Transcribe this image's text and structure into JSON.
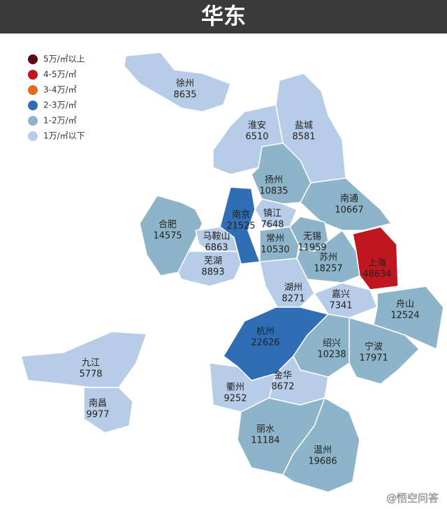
{
  "header": {
    "title": "华东"
  },
  "legend": {
    "items": [
      {
        "label": "5万/㎡以上",
        "color": "#5c0a16"
      },
      {
        "label": "4-5万/㎡",
        "color": "#c0161f"
      },
      {
        "label": "3-4万/㎡",
        "color": "#e46c1f"
      },
      {
        "label": "2-3万/㎡",
        "color": "#2f6db4"
      },
      {
        "label": "1-2万/㎡",
        "color": "#8db4c8"
      },
      {
        "label": "1万/㎡以下",
        "color": "#b6cce7"
      }
    ]
  },
  "regions": [
    {
      "name": "徐州",
      "value": 8635,
      "color": "#b6cce7"
    },
    {
      "name": "淮安",
      "value": 6510,
      "color": "#b6cce7"
    },
    {
      "name": "盐城",
      "value": 8581,
      "color": "#b6cce7"
    },
    {
      "name": "扬州",
      "value": 10835,
      "color": "#8db4c8"
    },
    {
      "name": "南通",
      "value": 10667,
      "color": "#8db4c8"
    },
    {
      "name": "南京",
      "value": 21525,
      "color": "#2f6db4"
    },
    {
      "name": "镇江",
      "value": 7648,
      "color": "#b6cce7"
    },
    {
      "name": "合肥",
      "value": 14575,
      "color": "#8db4c8"
    },
    {
      "name": "马鞍山",
      "value": 6863,
      "color": "#b6cce7"
    },
    {
      "name": "常州",
      "value": 10530,
      "color": "#8db4c8"
    },
    {
      "name": "无锡",
      "value": 11959,
      "color": "#8db4c8"
    },
    {
      "name": "芜湖",
      "value": 8893,
      "color": "#b6cce7"
    },
    {
      "name": "苏州",
      "value": 18257,
      "color": "#8db4c8"
    },
    {
      "name": "上海",
      "value": 48634,
      "color": "#c0161f"
    },
    {
      "name": "湖州",
      "value": 8271,
      "color": "#b6cce7"
    },
    {
      "name": "嘉兴",
      "value": 7341,
      "color": "#b6cce7"
    },
    {
      "name": "舟山",
      "value": 12524,
      "color": "#8db4c8"
    },
    {
      "name": "杭州",
      "value": 22626,
      "color": "#2f6db4"
    },
    {
      "name": "绍兴",
      "value": 10238,
      "color": "#8db4c8"
    },
    {
      "name": "宁波",
      "value": 17971,
      "color": "#8db4c8"
    },
    {
      "name": "九江",
      "value": 5778,
      "color": "#b6cce7"
    },
    {
      "name": "南昌",
      "value": 9977,
      "color": "#b6cce7"
    },
    {
      "name": "金华",
      "value": 8672,
      "color": "#b6cce7"
    },
    {
      "name": "衢州",
      "value": 9252,
      "color": "#b6cce7"
    },
    {
      "name": "丽水",
      "value": 11184,
      "color": "#8db4c8"
    },
    {
      "name": "温州",
      "value": 19686,
      "color": "#8db4c8"
    }
  ],
  "watermark": "@悟空问答"
}
